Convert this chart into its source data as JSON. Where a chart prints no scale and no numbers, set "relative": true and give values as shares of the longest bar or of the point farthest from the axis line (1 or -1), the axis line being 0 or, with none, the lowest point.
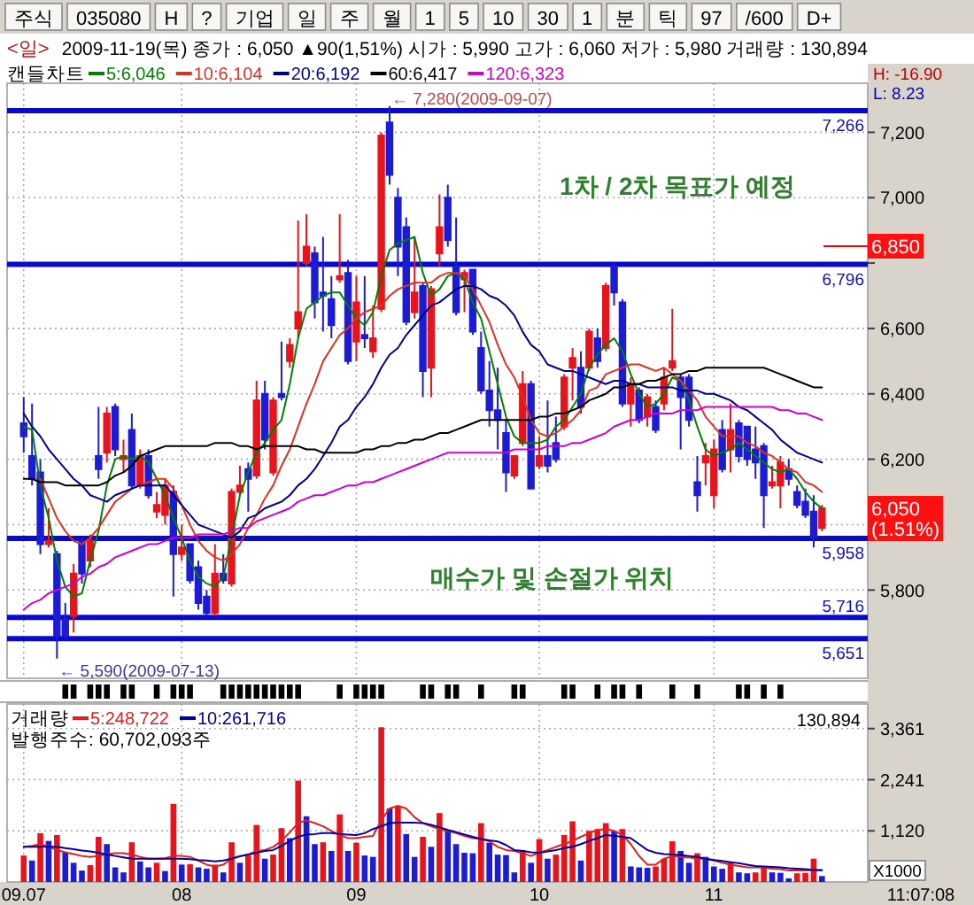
{
  "chart_data": [
    {
      "type": "other",
      "annotations": [
        "주식",
        "035080",
        "H",
        "?",
        "기업",
        "일",
        "주",
        "월",
        "1",
        "5",
        "10",
        "30",
        "1",
        "분",
        "틱",
        "97",
        "/600",
        "D+"
      ]
    },
    {
      "type": "candlestick",
      "title": "<일>",
      "subtitle": "2009-11-19(목) 종가 : 6,050 ▲90(1,51%) 시가 : 5,990 고가 : 6,060 저가 : 5,980 거래량 : 130,894",
      "legend_title": "캔들차트",
      "categories": [
        "09.07",
        null,
        null,
        null,
        null,
        null,
        null,
        null,
        null,
        null,
        null,
        null,
        null,
        null,
        null,
        null,
        null,
        null,
        null,
        "08",
        null,
        null,
        null,
        null,
        null,
        null,
        null,
        null,
        null,
        null,
        null,
        null,
        null,
        null,
        null,
        null,
        null,
        null,
        null,
        null,
        "09",
        null,
        null,
        null,
        null,
        null,
        null,
        null,
        null,
        null,
        null,
        null,
        null,
        null,
        null,
        null,
        null,
        null,
        null,
        null,
        null,
        null,
        "10",
        null,
        null,
        null,
        null,
        null,
        null,
        null,
        null,
        null,
        null,
        null,
        null,
        null,
        null,
        null,
        null,
        null,
        null,
        null,
        null,
        "11",
        null,
        null,
        null,
        null,
        null,
        null,
        null,
        null,
        null,
        null,
        null,
        null,
        null
      ],
      "ohlc": [
        [
          6310,
          6390,
          6220,
          6270
        ],
        [
          6210,
          6370,
          6120,
          6140
        ],
        [
          6160,
          6200,
          5910,
          5940
        ],
        [
          5940,
          6050,
          5930,
          5950
        ],
        [
          5910,
          5920,
          5590,
          5660
        ],
        [
          5710,
          5760,
          5650,
          5660
        ],
        [
          5720,
          5880,
          5670,
          5850
        ],
        [
          5950,
          5960,
          5820,
          5850
        ],
        [
          5890,
          5970,
          5870,
          5950
        ],
        [
          6210,
          6360,
          6140,
          6170
        ],
        [
          6220,
          6360,
          6190,
          6340
        ],
        [
          6360,
          6370,
          6210,
          6230
        ],
        [
          6200,
          6260,
          6160,
          6210
        ],
        [
          6290,
          6340,
          6110,
          6120
        ],
        [
          6120,
          6230,
          6110,
          6210
        ],
        [
          6210,
          6230,
          6080,
          6090
        ],
        [
          6040,
          6100,
          6020,
          6060
        ],
        [
          6030,
          6140,
          6000,
          6120
        ],
        [
          6100,
          6120,
          5780,
          5910
        ],
        [
          5910,
          6000,
          5890,
          5930
        ],
        [
          5940,
          5940,
          5820,
          5830
        ],
        [
          5870,
          5890,
          5740,
          5760
        ],
        [
          5780,
          5800,
          5720,
          5730
        ],
        [
          5730,
          5940,
          5720,
          5850
        ],
        [
          5850,
          5910,
          5820,
          5830
        ],
        [
          5820,
          6110,
          5810,
          6100
        ],
        [
          6100,
          6180,
          6090,
          6120
        ],
        [
          6170,
          6190,
          6040,
          6140
        ],
        [
          6150,
          6440,
          6140,
          6380
        ],
        [
          6400,
          6440,
          6230,
          6260
        ],
        [
          6160,
          6390,
          6150,
          6380
        ],
        [
          6400,
          6560,
          6380,
          6390
        ],
        [
          6500,
          6570,
          6480,
          6550
        ],
        [
          6600,
          6930,
          6570,
          6650
        ],
        [
          6800,
          6950,
          6790,
          6850
        ],
        [
          6830,
          6850,
          6630,
          6680
        ],
        [
          6710,
          6880,
          6590,
          6700
        ],
        [
          6690,
          6760,
          6570,
          6610
        ],
        [
          6750,
          6950,
          6740,
          6760
        ],
        [
          6770,
          6810,
          6490,
          6500
        ],
        [
          6560,
          6760,
          6500,
          6680
        ],
        [
          6580,
          6760,
          6540,
          6570
        ],
        [
          6530,
          6670,
          6510,
          6570
        ],
        [
          6660,
          7200,
          6650,
          7190
        ],
        [
          7230,
          7280,
          7040,
          7070
        ],
        [
          7000,
          7030,
          6760,
          6850
        ],
        [
          6910,
          6940,
          6610,
          6620
        ],
        [
          6650,
          6880,
          6630,
          6710
        ],
        [
          6730,
          6740,
          6390,
          6470
        ],
        [
          6480,
          6730,
          6390,
          6720
        ],
        [
          6830,
          7010,
          6790,
          6910
        ],
        [
          7000,
          7040,
          6850,
          6870
        ],
        [
          6790,
          6940,
          6640,
          6650
        ],
        [
          6750,
          6780,
          6650,
          6770
        ],
        [
          6780,
          6780,
          6580,
          6590
        ],
        [
          6540,
          6590,
          6400,
          6410
        ],
        [
          6410,
          6500,
          6300,
          6350
        ],
        [
          6350,
          6480,
          6230,
          6320
        ],
        [
          6280,
          6320,
          6100,
          6160
        ],
        [
          6150,
          6210,
          6140,
          6210
        ],
        [
          6250,
          6470,
          6240,
          6430
        ],
        [
          6430,
          6440,
          6110,
          6110
        ],
        [
          6180,
          6270,
          6170,
          6210
        ],
        [
          6210,
          6380,
          6160,
          6180
        ],
        [
          6250,
          6330,
          6190,
          6200
        ],
        [
          6300,
          6460,
          6290,
          6450
        ],
        [
          6480,
          6540,
          6380,
          6510
        ],
        [
          6480,
          6530,
          6340,
          6360
        ],
        [
          6480,
          6600,
          6470,
          6590
        ],
        [
          6570,
          6600,
          6480,
          6500
        ],
        [
          6540,
          6740,
          6530,
          6730
        ],
        [
          6790,
          6800,
          6670,
          6710
        ],
        [
          6680,
          6690,
          6360,
          6370
        ],
        [
          6370,
          6450,
          6300,
          6430
        ],
        [
          6410,
          6420,
          6310,
          6320
        ],
        [
          6330,
          6400,
          6300,
          6390
        ],
        [
          6360,
          6380,
          6280,
          6290
        ],
        [
          6370,
          6480,
          6350,
          6450
        ],
        [
          6480,
          6660,
          6470,
          6500
        ],
        [
          6450,
          6460,
          6230,
          6390
        ],
        [
          6450,
          6460,
          6300,
          6320
        ],
        [
          6130,
          6210,
          6040,
          6090
        ],
        [
          6190,
          6250,
          6120,
          6210
        ],
        [
          6090,
          6260,
          6050,
          6230
        ],
        [
          6290,
          6320,
          6160,
          6170
        ],
        [
          6230,
          6370,
          6160,
          6290
        ],
        [
          6310,
          6320,
          6190,
          6210
        ],
        [
          6300,
          6300,
          6180,
          6200
        ],
        [
          6230,
          6300,
          6140,
          6190
        ],
        [
          6240,
          6250,
          5990,
          6090
        ],
        [
          6120,
          6180,
          6110,
          6130
        ],
        [
          6120,
          6210,
          6050,
          6190
        ],
        [
          6170,
          6200,
          6120,
          6140
        ],
        [
          6100,
          6120,
          6050,
          6060
        ],
        [
          6070,
          6110,
          6020,
          6030
        ],
        [
          6040,
          6090,
          5930,
          5960
        ],
        [
          5990,
          6060,
          5980,
          6050
        ]
      ],
      "colors": [
        "#1c1cd6",
        "#1c1cd6",
        "#1c1cd6",
        "#e8141c",
        "#1c1cd6",
        "#1c1cd6",
        "#e8141c",
        "#1c1cd6",
        "#e8141c",
        "#1c1cd6",
        "#e8141c",
        "#1c1cd6",
        "#e8141c",
        "#1c1cd6",
        "#e8141c",
        "#1c1cd6",
        "#e8141c",
        "#e8141c",
        "#1c1cd6",
        "#e8141c",
        "#1c1cd6",
        "#1c1cd6",
        "#1c1cd6",
        "#e8141c",
        "#1c1cd6",
        "#e8141c",
        "#e8141c",
        "#1c1cd6",
        "#e8141c",
        "#1c1cd6",
        "#e8141c",
        "#1c1cd6",
        "#e8141c",
        "#e8141c",
        "#e8141c",
        "#1c1cd6",
        "#1c1cd6",
        "#1c1cd6",
        "#e8141c",
        "#1c1cd6",
        "#e8141c",
        "#1c1cd6",
        "#e8141c",
        "#e8141c",
        "#1c1cd6",
        "#1c1cd6",
        "#1c1cd6",
        "#e8141c",
        "#1c1cd6",
        "#e8141c",
        "#e8141c",
        "#1c1cd6",
        "#1c1cd6",
        "#e8141c",
        "#1c1cd6",
        "#1c1cd6",
        "#1c1cd6",
        "#1c1cd6",
        "#1c1cd6",
        "#e8141c",
        "#e8141c",
        "#1c1cd6",
        "#e8141c",
        "#1c1cd6",
        "#1c1cd6",
        "#e8141c",
        "#e8141c",
        "#1c1cd6",
        "#e8141c",
        "#1c1cd6",
        "#e8141c",
        "#1c1cd6",
        "#1c1cd6",
        "#e8141c",
        "#1c1cd6",
        "#e8141c",
        "#1c1cd6",
        "#e8141c",
        "#e8141c",
        "#1c1cd6",
        "#1c1cd6",
        "#1c1cd6",
        "#e8141c",
        "#e8141c",
        "#1c1cd6",
        "#e8141c",
        "#1c1cd6",
        "#1c1cd6",
        "#1c1cd6",
        "#1c1cd6",
        "#e8141c",
        "#e8141c",
        "#1c1cd6",
        "#1c1cd6",
        "#1c1cd6",
        "#1c1cd6",
        "#e8141c"
      ],
      "series": [
        {
          "name": "5:6,046",
          "type": "line",
          "color": "#008000",
          "values": [
            6300,
            6290,
            6120,
            6020,
            5890,
            5810,
            5780,
            5790,
            5890,
            5980,
            6120,
            6200,
            6210,
            6200,
            6210,
            6190,
            6140,
            6090,
            6020,
            5960,
            5890,
            5840,
            5820,
            5810,
            5840,
            5960,
            6090,
            6160,
            6220,
            6250,
            6290,
            6320,
            6430,
            6570,
            6660,
            6680,
            6700,
            6710,
            6710,
            6670,
            6630,
            6610,
            6650,
            6760,
            6840,
            6860,
            6870,
            6880,
            6770,
            6700,
            6720,
            6760,
            6770,
            6750,
            6680,
            6630,
            6530,
            6430,
            6330,
            6270,
            6250,
            6250,
            6250,
            6260,
            6300,
            6320,
            6360,
            6400,
            6480,
            6520,
            6550,
            6570,
            6530,
            6460,
            6400,
            6360,
            6370,
            6400,
            6450,
            6440,
            6380,
            6300,
            6230,
            6210,
            6220,
            6230,
            6250,
            6230,
            6210,
            6190,
            6170,
            6160,
            6170,
            6140,
            6100,
            6070,
            6050
          ]
        },
        {
          "name": "10:6,104",
          "type": "line",
          "color": "#e03020",
          "values": [
            null,
            null,
            6140,
            6080,
            6020,
            5980,
            5950,
            5940,
            5960,
            5990,
            6030,
            6070,
            6090,
            6110,
            6120,
            6130,
            6140,
            6140,
            6110,
            6060,
            6000,
            5950,
            5920,
            5900,
            5890,
            5910,
            5940,
            5990,
            6030,
            6080,
            6120,
            6180,
            6230,
            6300,
            6370,
            6430,
            6500,
            6540,
            6580,
            6600,
            6630,
            6650,
            6660,
            6670,
            6700,
            6720,
            6730,
            6740,
            6740,
            6740,
            6760,
            6770,
            6770,
            6760,
            6720,
            6670,
            6620,
            6550,
            6490,
            6450,
            6390,
            6320,
            6280,
            6270,
            6280,
            6300,
            6320,
            6350,
            6410,
            6420,
            6460,
            6470,
            6480,
            6490,
            6490,
            6480,
            6470,
            6480,
            6460,
            6440,
            6410,
            6380,
            6330,
            6300,
            6270,
            6270,
            6270,
            6250,
            6240,
            6220,
            6210,
            6190,
            6170,
            6160,
            6130,
            6120,
            6100
          ]
        },
        {
          "name": "20:6,192",
          "type": "line",
          "color": "#000090",
          "values": [
            6340,
            6300,
            6270,
            6230,
            6200,
            6170,
            6140,
            6120,
            6090,
            6080,
            6070,
            6090,
            6100,
            6110,
            6120,
            6120,
            6120,
            6120,
            6090,
            6060,
            6030,
            6000,
            5990,
            5980,
            5970,
            5960,
            5980,
            6020,
            6030,
            6050,
            6060,
            6070,
            6090,
            6120,
            6140,
            6170,
            6210,
            6250,
            6300,
            6320,
            6360,
            6390,
            6430,
            6480,
            6520,
            6540,
            6580,
            6610,
            6640,
            6670,
            6680,
            6700,
            6720,
            6730,
            6730,
            6720,
            6700,
            6690,
            6670,
            6640,
            6590,
            6550,
            6530,
            6490,
            6480,
            6470,
            6470,
            6460,
            6450,
            6440,
            6430,
            6440,
            6440,
            6430,
            6430,
            6420,
            6420,
            6420,
            6420,
            6410,
            6410,
            6410,
            6400,
            6400,
            6390,
            6380,
            6360,
            6350,
            6330,
            6310,
            6290,
            6260,
            6240,
            6220,
            6210,
            6200,
            6190
          ]
        },
        {
          "name": "60:6,417",
          "type": "line",
          "color": "#000000",
          "values": [
            6140,
            6140,
            6130,
            6130,
            6130,
            6120,
            6120,
            6120,
            6120,
            6120,
            6130,
            6150,
            6160,
            6180,
            6210,
            6220,
            6230,
            6240,
            6240,
            6240,
            6240,
            6240,
            6240,
            6250,
            6250,
            6250,
            6240,
            6240,
            6230,
            6240,
            6240,
            6240,
            6240,
            6240,
            6230,
            6230,
            6220,
            6220,
            6220,
            6220,
            6220,
            6230,
            6230,
            6240,
            6240,
            6250,
            6250,
            6260,
            6260,
            6270,
            6280,
            6280,
            6290,
            6300,
            6310,
            6320,
            6320,
            6320,
            6320,
            6320,
            6320,
            6320,
            6330,
            6330,
            6340,
            6340,
            6350,
            6360,
            6380,
            6390,
            6400,
            6420,
            6420,
            6430,
            6430,
            6440,
            6440,
            6450,
            6460,
            6460,
            6470,
            6470,
            6480,
            6480,
            6480,
            6480,
            6480,
            6480,
            6480,
            6480,
            6470,
            6460,
            6450,
            6440,
            6430,
            6420,
            6420
          ]
        },
        {
          "name": "120:6,323",
          "type": "line",
          "color": "#d000d0",
          "values": [
            5740,
            5760,
            5770,
            5790,
            5800,
            5810,
            5820,
            5840,
            5850,
            5870,
            5880,
            5900,
            5910,
            5920,
            5930,
            5940,
            5940,
            5950,
            5960,
            5960,
            5960,
            5970,
            5970,
            5970,
            5970,
            5980,
            5990,
            5990,
            6010,
            6020,
            6030,
            6040,
            6050,
            6070,
            6080,
            6090,
            6090,
            6100,
            6110,
            6120,
            6120,
            6130,
            6130,
            6140,
            6150,
            6160,
            6170,
            6180,
            6190,
            6200,
            6210,
            6220,
            6220,
            6220,
            6220,
            6220,
            6220,
            6220,
            6220,
            6230,
            6230,
            6230,
            6230,
            6240,
            6240,
            6240,
            6250,
            6250,
            6260,
            6270,
            6280,
            6300,
            6310,
            6320,
            6320,
            6330,
            6340,
            6340,
            6340,
            6350,
            6350,
            6350,
            6360,
            6360,
            6360,
            6360,
            6360,
            6360,
            6360,
            6360,
            6360,
            6350,
            6350,
            6340,
            6340,
            6330,
            6320
          ]
        }
      ],
      "ylim": [
        5530,
        7350
      ],
      "yticks": [
        {
          "value": 5800,
          "label": "5,800"
        },
        {
          "value": 6000,
          "label": null
        },
        {
          "value": 6200,
          "label": "6,200"
        },
        {
          "value": 6400,
          "label": "6,400"
        },
        {
          "value": 6600,
          "label": "6,600"
        },
        {
          "value": 6800,
          "label": null
        },
        {
          "value": 7000,
          "label": "7,000"
        },
        {
          "value": 7200,
          "label": "7,200"
        }
      ],
      "tick_labels": "y",
      "grid": true,
      "legend": "top left",
      "ref_lines": [
        {
          "axis": "y",
          "value": 7266,
          "label": "7,266",
          "color": "#0a0acc"
        },
        {
          "axis": "y",
          "value": 6796,
          "label": "6,796",
          "color": "#0a0acc"
        },
        {
          "axis": "y",
          "value": 5958,
          "label": "5,958",
          "color": "#0a0acc"
        },
        {
          "axis": "y",
          "value": 5716,
          "label": "5,716",
          "color": "#0a0acc"
        },
        {
          "axis": "y",
          "value": 5651,
          "label": "5,651",
          "color": "#0a0acc"
        }
      ],
      "annotations": [
        "H: -16.90",
        "L: 8.23",
        "1차 / 2차 목표가 예정",
        "매수가 및 손절가 위치",
        "6,050 (1.51%)",
        "← 5,590(2009-07-13)",
        "6,850",
        {
          "text": "← 7,280(2009-09-07)",
          "y": 7280
        }
      ]
    },
    {
      "type": "bar",
      "relative": true,
      "color": "#000000",
      "categories": [
        null,
        null,
        null,
        null,
        null,
        null,
        null,
        null,
        null,
        null,
        null,
        null,
        null,
        null,
        null,
        null,
        null,
        null,
        null,
        null,
        null,
        null,
        null,
        null,
        null,
        null,
        null,
        null,
        null,
        null,
        null,
        null,
        null,
        null,
        null,
        null,
        null,
        null,
        null,
        null,
        null,
        null,
        null,
        null,
        null,
        null,
        null,
        null,
        null,
        null,
        null,
        null,
        null,
        null,
        null,
        null,
        null,
        null,
        null,
        null,
        null,
        null,
        null,
        null,
        null,
        null,
        null,
        null,
        null,
        null,
        null,
        null,
        null,
        null,
        null,
        null,
        null,
        null,
        null,
        null,
        null,
        null,
        null,
        null,
        null,
        null,
        null,
        null,
        null,
        null,
        null,
        null,
        null,
        null,
        null,
        null,
        null
      ],
      "values": [
        null,
        null,
        null,
        null,
        null,
        1,
        1,
        null,
        1,
        1,
        1,
        null,
        1,
        1,
        null,
        null,
        1,
        null,
        1,
        1,
        1,
        null,
        null,
        null,
        1,
        1,
        1,
        1,
        1,
        1,
        1,
        1,
        1,
        1,
        null,
        null,
        null,
        null,
        1,
        null,
        1,
        1,
        1,
        1,
        null,
        null,
        null,
        null,
        1,
        1,
        null,
        1,
        1,
        null,
        null,
        1,
        null,
        null,
        null,
        1,
        1,
        null,
        null,
        null,
        null,
        1,
        1,
        null,
        null,
        1,
        null,
        1,
        1,
        null,
        1,
        null,
        null,
        null,
        1,
        null,
        null,
        1,
        null,
        null,
        null,
        null,
        1,
        1,
        null,
        1,
        null,
        1,
        null,
        null,
        null,
        null,
        null
      ]
    },
    {
      "type": "bar",
      "legend_title": "거래량",
      "categories": [
        "09.07",
        null,
        null,
        null,
        null,
        null,
        null,
        null,
        null,
        null,
        null,
        null,
        null,
        null,
        null,
        null,
        null,
        null,
        null,
        "08",
        null,
        null,
        null,
        null,
        null,
        null,
        null,
        null,
        null,
        null,
        null,
        null,
        null,
        null,
        null,
        null,
        null,
        null,
        null,
        null,
        "09",
        null,
        null,
        null,
        null,
        null,
        null,
        null,
        null,
        null,
        null,
        null,
        null,
        null,
        null,
        null,
        null,
        null,
        null,
        null,
        null,
        null,
        "10",
        null,
        null,
        null,
        null,
        null,
        null,
        null,
        null,
        null,
        null,
        null,
        null,
        null,
        null,
        null,
        null,
        null,
        null,
        null,
        null,
        "11",
        null,
        null,
        null,
        null,
        null,
        null,
        null,
        null,
        null,
        null,
        null,
        null,
        null
      ],
      "series": [
        {
          "type": "bar",
          "values": [
            580,
            470,
            1070,
            900,
            1030,
            640,
            420,
            250,
            370,
            990,
            830,
            320,
            210,
            870,
            450,
            320,
            420,
            240,
            1710,
            380,
            390,
            320,
            290,
            380,
            210,
            870,
            420,
            580,
            1250,
            510,
            600,
            1180,
            960,
            2220,
            1440,
            830,
            870,
            680,
            1480,
            680,
            860,
            580,
            550,
            3390,
            1610,
            1660,
            1050,
            550,
            990,
            770,
            1510,
            1120,
            830,
            640,
            630,
            1290,
            860,
            600,
            590,
            210,
            700,
            420,
            940,
            510,
            600,
            1030,
            1330,
            470,
            1120,
            1160,
            1290,
            1120,
            1160,
            340,
            320,
            310,
            340,
            510,
            890,
            680,
            420,
            630,
            550,
            340,
            290,
            450,
            210,
            190,
            210,
            320,
            210,
            200,
            80,
            190,
            200,
            510,
            130
          ],
          "colors": [
            "#e8141c",
            "#1c1cd6",
            "#e8141c",
            "#1c1cd6",
            "#e8141c",
            "#1c1cd6",
            "#1c1cd6",
            "#1c1cd6",
            "#e8141c",
            "#e8141c",
            "#1c1cd6",
            "#1c1cd6",
            "#1c1cd6",
            "#e8141c",
            "#1c1cd6",
            "#1c1cd6",
            "#e8141c",
            "#1c1cd6",
            "#e8141c",
            "#1c1cd6",
            "#e8141c",
            "#1c1cd6",
            "#1c1cd6",
            "#e8141c",
            "#1c1cd6",
            "#e8141c",
            "#1c1cd6",
            "#e8141c",
            "#e8141c",
            "#1c1cd6",
            "#e8141c",
            "#e8141c",
            "#1c1cd6",
            "#e8141c",
            "#1c1cd6",
            "#1c1cd6",
            "#e8141c",
            "#1c1cd6",
            "#e8141c",
            "#1c1cd6",
            "#e8141c",
            "#1c1cd6",
            "#1c1cd6",
            "#e8141c",
            "#1c1cd6",
            "#e8141c",
            "#1c1cd6",
            "#1c1cd6",
            "#e8141c",
            "#1c1cd6",
            "#e8141c",
            "#1c1cd6",
            "#1c1cd6",
            "#1c1cd6",
            "#1c1cd6",
            "#e8141c",
            "#1c1cd6",
            "#1c1cd6",
            "#1c1cd6",
            "#1c1cd6",
            "#e8141c",
            "#1c1cd6",
            "#e8141c",
            "#1c1cd6",
            "#e8141c",
            "#e8141c",
            "#e8141c",
            "#1c1cd6",
            "#e8141c",
            "#e8141c",
            "#e8141c",
            "#1c1cd6",
            "#e8141c",
            "#1c1cd6",
            "#1c1cd6",
            "#1c1cd6",
            "#e8141c",
            "#e8141c",
            "#e8141c",
            "#1c1cd6",
            "#1c1cd6",
            "#e8141c",
            "#1c1cd6",
            "#1c1cd6",
            "#1c1cd6",
            "#e8141c",
            "#1c1cd6",
            "#1c1cd6",
            "#e8141c",
            "#e8141c",
            "#1c1cd6",
            "#1c1cd6",
            "#1c1cd6",
            "#e8141c",
            "#e8141c",
            "#e8141c",
            "#1c1cd6"
          ]
        },
        {
          "name": "5:248,722",
          "type": "line",
          "color": "#e02020",
          "values": [
            770,
            790,
            830,
            770,
            700,
            650,
            610,
            570,
            550,
            570,
            610,
            630,
            630,
            600,
            550,
            510,
            510,
            520,
            570,
            570,
            550,
            470,
            380,
            340,
            380,
            510,
            570,
            600,
            680,
            700,
            770,
            900,
            1090,
            1290,
            1350,
            1290,
            1220,
            1120,
            1030,
            960,
            960,
            990,
            1010,
            1350,
            1610,
            1670,
            1610,
            1420,
            1290,
            1220,
            1160,
            1120,
            1070,
            1010,
            960,
            940,
            890,
            770,
            700,
            680,
            630,
            570,
            640,
            700,
            770,
            830,
            900,
            990,
            1070,
            1140,
            1160,
            1120,
            1030,
            830,
            570,
            380,
            380,
            510,
            570,
            550,
            540,
            510,
            510,
            470,
            420,
            380,
            350,
            320,
            320,
            320,
            290,
            280,
            250,
            250,
            250,
            260,
            250
          ]
        },
        {
          "name": "10:261,716",
          "type": "line",
          "color": "#0000a0",
          "values": [
            770,
            770,
            770,
            770,
            770,
            740,
            720,
            690,
            670,
            640,
            600,
            570,
            540,
            510,
            510,
            510,
            510,
            510,
            510,
            510,
            500,
            480,
            470,
            450,
            470,
            510,
            560,
            600,
            640,
            680,
            700,
            790,
            900,
            990,
            1040,
            1050,
            1070,
            1070,
            1050,
            1040,
            1030,
            1070,
            1160,
            1220,
            1290,
            1300,
            1300,
            1300,
            1290,
            1250,
            1200,
            1140,
            1090,
            1040,
            990,
            940,
            910,
            890,
            810,
            700,
            680,
            650,
            640,
            670,
            700,
            740,
            770,
            830,
            900,
            960,
            1030,
            1010,
            990,
            960,
            830,
            700,
            640,
            610,
            600,
            590,
            570,
            550,
            510,
            480,
            460,
            430,
            410,
            380,
            350,
            340,
            330,
            320,
            300,
            290,
            280,
            260,
            260
          ]
        }
      ],
      "ylim": [
        0,
        3900
      ],
      "yticks": [
        {
          "value": 1120,
          "label": "1,120"
        },
        {
          "value": 2241,
          "label": "2,241"
        },
        {
          "value": 3361,
          "label": "3,361"
        }
      ],
      "ylabel": "X1000",
      "grid": true,
      "legend": "top left",
      "annotations": [
        "발행주수: 60,702,093주",
        "130,894",
        "11:07:08"
      ]
    }
  ]
}
